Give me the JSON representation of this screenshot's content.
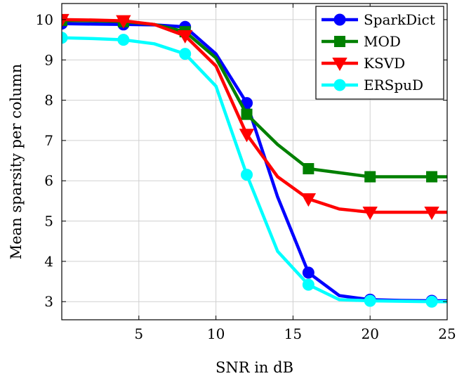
{
  "chart_data": {
    "type": "line",
    "xlabel": "SNR in dB",
    "ylabel": "Mean sparsity per column",
    "xlim": [
      0,
      25
    ],
    "ylim": [
      2.55,
      10.4
    ],
    "xticks": [
      5,
      10,
      15,
      20,
      25
    ],
    "yticks": [
      3,
      4,
      5,
      6,
      7,
      8,
      9,
      10
    ],
    "grid": true,
    "legend_position": "top-right",
    "series": [
      {
        "name": "SparkDict",
        "color": "#0000ff",
        "marker": "circle",
        "x": [
          0,
          2,
          4,
          6,
          8,
          10,
          12,
          14,
          16,
          18,
          20,
          22,
          24,
          25
        ],
        "y": [
          9.9,
          9.89,
          9.88,
          9.87,
          9.82,
          9.15,
          7.93,
          5.6,
          3.72,
          3.15,
          3.05,
          3.03,
          3.02,
          3.02
        ],
        "marker_x": [
          0,
          4,
          8,
          12,
          16,
          20,
          24
        ]
      },
      {
        "name": "MOD",
        "color": "#008000",
        "marker": "square",
        "x": [
          0,
          2,
          4,
          6,
          8,
          10,
          12,
          14,
          16,
          18,
          20,
          22,
          24,
          25
        ],
        "y": [
          9.98,
          9.97,
          9.95,
          9.88,
          9.7,
          9.05,
          7.65,
          6.9,
          6.3,
          6.2,
          6.1,
          6.1,
          6.1,
          6.1
        ],
        "marker_x": [
          0,
          4,
          8,
          12,
          16,
          20,
          24
        ]
      },
      {
        "name": "KSVD",
        "color": "#ff0000",
        "marker": "triangle-down",
        "x": [
          0,
          2,
          4,
          6,
          8,
          10,
          12,
          14,
          16,
          18,
          20,
          22,
          24,
          25
        ],
        "y": [
          10.0,
          9.99,
          9.97,
          9.88,
          9.6,
          8.85,
          7.15,
          6.1,
          5.55,
          5.3,
          5.22,
          5.22,
          5.22,
          5.22
        ],
        "marker_x": [
          0,
          4,
          8,
          12,
          16,
          20,
          24
        ]
      },
      {
        "name": "ERSpuD",
        "color": "#00ffff",
        "marker": "circle",
        "x": [
          0,
          2,
          4,
          6,
          8,
          10,
          12,
          14,
          16,
          18,
          20,
          22,
          24,
          25
        ],
        "y": [
          9.55,
          9.53,
          9.5,
          9.4,
          9.15,
          8.35,
          6.15,
          4.25,
          3.42,
          3.05,
          3.02,
          3.01,
          3.0,
          3.0
        ],
        "marker_x": [
          0,
          4,
          8,
          12,
          16,
          20,
          24
        ]
      }
    ]
  }
}
